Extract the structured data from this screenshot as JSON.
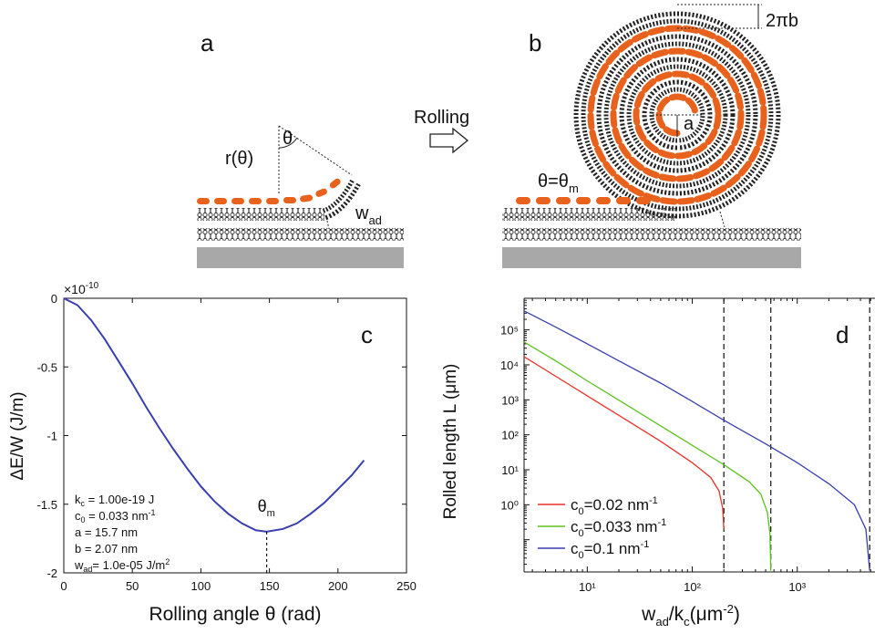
{
  "panel_a": {
    "letter": "a",
    "r_label": "r(θ)",
    "theta_label": "θ",
    "wad_main": "w",
    "wad_sub": "ad"
  },
  "arrow": {
    "label": "Rolling"
  },
  "panel_b": {
    "letter": "b",
    "pitch_label": "2πb",
    "radius_label": "a",
    "theta_main": "θ=θ",
    "theta_sub": "m"
  },
  "panel_c": {
    "letter": "c",
    "ylabel": "ΔE/W (J/m)",
    "xlabel": "Rolling angle θ (rad)",
    "exponent_prefix": "×10",
    "exponent_power": "-10",
    "theta_m_main": "θ",
    "theta_m_sub": "m",
    "params": [
      {
        "main": "k",
        "sub": "c",
        "rest": " = 1.00e-19 J",
        "sup": ""
      },
      {
        "main": "c",
        "sub": "0",
        "rest": " = 0.033 nm",
        "sup": "-1"
      },
      {
        "main": "a = 15.7 nm",
        "sub": "",
        "rest": "",
        "sup": ""
      },
      {
        "main": "b = 2.07 nm",
        "sub": "",
        "rest": "",
        "sup": ""
      },
      {
        "main": "w",
        "sub": "ad",
        "rest": "= 1.0e-05 J/m",
        "sup": "2"
      }
    ],
    "colors": {
      "curve": "#3a3fae"
    }
  },
  "panel_d": {
    "letter": "d",
    "ylabel": "Rolled length L (μm)",
    "xlabel_main": "w",
    "xlabel_sub1": "ad",
    "xlabel_mid": "/k",
    "xlabel_sub2": "c",
    "xlabel_end": "(μm",
    "xlabel_sup": "-2",
    "xlabel_close": ")",
    "legend": [
      {
        "main": "c",
        "sub": "0",
        "rest": "=0.02 nm",
        "sup": "-1",
        "color": "#e8322b"
      },
      {
        "main": "c",
        "sub": "0",
        "rest": "=0.033 nm",
        "sup": "-1",
        "color": "#5cc21f"
      },
      {
        "main": "c",
        "sub": "0",
        "rest": "=0.1 nm",
        "sup": "-1",
        "color": "#3a3fae"
      }
    ]
  },
  "chart_data": [
    {
      "type": "line",
      "panel": "c",
      "xlabel": "Rolling angle θ (rad)",
      "ylabel": "ΔE/W (J/m)",
      "xlim": [
        0,
        250
      ],
      "ylim": [
        -2e-10,
        0
      ],
      "x_ticks": [
        0,
        50,
        100,
        150,
        200,
        250
      ],
      "x_tick_labels": [
        "0",
        "50",
        "100",
        "150",
        "200",
        "250"
      ],
      "y_ticks": [
        0,
        -5e-11,
        -1e-10,
        -1.5e-10,
        -2e-10
      ],
      "y_tick_labels": [
        "0",
        "-0.5",
        "-1",
        "-1.5",
        "-2"
      ],
      "series": [
        {
          "color": "#3a3fae",
          "x": [
            0,
            10,
            20,
            30,
            40,
            50,
            60,
            70,
            80,
            90,
            100,
            110,
            120,
            130,
            140,
            148,
            160,
            170,
            180,
            190,
            200,
            210,
            219
          ],
          "y": [
            0,
            -5e-12,
            -1.6e-11,
            -3e-11,
            -4.6e-11,
            -6.2e-11,
            -7.9e-11,
            -9.5e-11,
            -1.1e-10,
            -1.24e-10,
            -1.37e-10,
            -1.48e-10,
            -1.57e-10,
            -1.64e-10,
            -1.69e-10,
            -1.7e-10,
            -1.68e-10,
            -1.64e-10,
            -1.57e-10,
            -1.49e-10,
            -1.39e-10,
            -1.29e-10,
            -1.18e-10
          ]
        }
      ],
      "annotations": [
        {
          "text": "θm",
          "x": 148,
          "y": -1.7e-10,
          "style": "dashed vertical line"
        }
      ],
      "grid": false
    },
    {
      "type": "line",
      "panel": "d",
      "xscale": "log",
      "yscale": "log",
      "xlim": [
        2.5,
        5500
      ],
      "ylim": [
        0.012,
        800000
      ],
      "x_ticks": [
        10,
        100,
        1000
      ],
      "x_tick_labels": [
        "10¹",
        "10²",
        "10³"
      ],
      "y_ticks": [
        1,
        10,
        100,
        1000,
        10000,
        100000
      ],
      "y_tick_labels": [
        "10⁰",
        "10¹",
        "10²",
        "10³",
        "10⁴",
        "10⁵"
      ],
      "legend_position": "lower-left",
      "series": [
        {
          "name": "c0=0.02 nm-1",
          "color": "#e8322b",
          "x": [
            2.5,
            5,
            10,
            20,
            50,
            100,
            150,
            180,
            195,
            200
          ],
          "y": [
            17000,
            4700,
            1300,
            360,
            65,
            16,
            6,
            2.5,
            0.8,
            0.2
          ]
        },
        {
          "name": "c0=0.033 nm-1",
          "color": "#5cc21f",
          "x": [
            2.5,
            5,
            10,
            20,
            50,
            100,
            200,
            350,
            450,
            520,
            550,
            560
          ],
          "y": [
            45000,
            13000,
            3500,
            980,
            180,
            50,
            14,
            4.5,
            2,
            0.6,
            0.15,
            0.013
          ]
        },
        {
          "name": "c0=0.1 nm-1",
          "color": "#3a3fae",
          "x": [
            2.5,
            5,
            10,
            20,
            50,
            100,
            200,
            500,
            1000,
            2000,
            3500,
            4500,
            4900
          ],
          "y": [
            350000,
            120000,
            40000,
            13000,
            3000,
            900,
            260,
            55,
            16,
            4,
            1,
            0.2,
            0.013
          ]
        }
      ],
      "vertical_dashed_lines_x": [
        200,
        560,
        4900
      ],
      "grid": false
    }
  ]
}
